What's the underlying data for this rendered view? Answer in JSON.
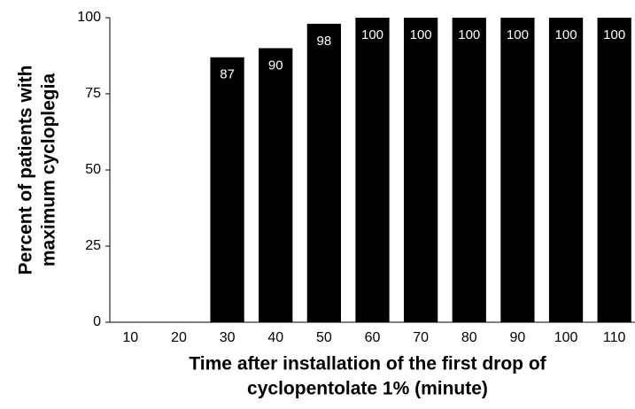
{
  "chart_data": {
    "type": "bar",
    "x_label": [
      "Time after installation of the first drop of",
      "cyclopentolate 1% (minute)"
    ],
    "y_label": [
      "Percent of patients with",
      "maximum cycloplegia"
    ],
    "categories": [
      "10",
      "20",
      "30",
      "40",
      "50",
      "60",
      "70",
      "80",
      "90",
      "100",
      "110"
    ],
    "values": [
      0,
      0,
      87,
      90,
      98,
      100,
      100,
      100,
      100,
      100,
      100
    ],
    "color": "#000000",
    "ylim": [
      0,
      100
    ],
    "yticks": [
      0,
      25,
      50,
      75,
      100
    ]
  }
}
